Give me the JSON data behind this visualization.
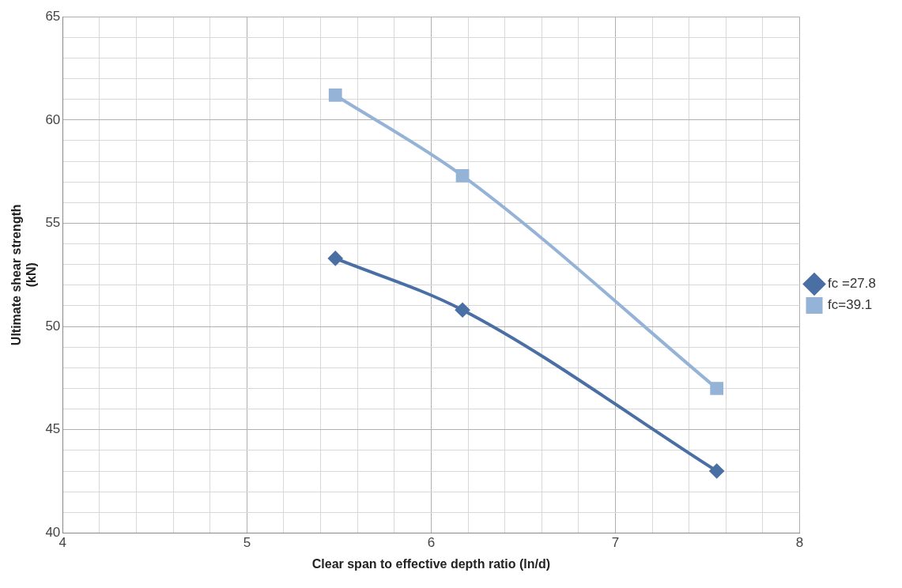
{
  "chart_data": {
    "type": "line",
    "xlabel": "Clear span to effective depth ratio (ln/d)",
    "ylabel": "Ultimate shear strength\n(kN)",
    "xlim": [
      4,
      8
    ],
    "ylim": [
      40,
      65
    ],
    "xticks": [
      4,
      {
        "value": 4.2,
        "label": null
      },
      {
        "value": 4.4,
        "label": null
      },
      {
        "value": 4.6,
        "label": null
      },
      {
        "value": 4.8,
        "label": null
      },
      5,
      {
        "value": 5.2,
        "label": null
      },
      {
        "value": 5.4,
        "label": null
      },
      {
        "value": 5.6,
        "label": null
      },
      {
        "value": 5.8,
        "label": null
      },
      6,
      {
        "value": 6.2,
        "label": null
      },
      {
        "value": 6.4,
        "label": null
      },
      {
        "value": 6.6,
        "label": null
      },
      {
        "value": 6.8,
        "label": null
      },
      7,
      {
        "value": 7.2,
        "label": null
      },
      {
        "value": 7.4,
        "label": null
      },
      {
        "value": 7.6,
        "label": null
      },
      {
        "value": 7.8,
        "label": null
      },
      8
    ],
    "yticks": [
      40,
      {
        "value": 41,
        "label": null
      },
      {
        "value": 42,
        "label": null
      },
      {
        "value": 43,
        "label": null
      },
      {
        "value": 44,
        "label": null
      },
      45,
      {
        "value": 46,
        "label": null
      },
      {
        "value": 47,
        "label": null
      },
      {
        "value": 48,
        "label": null
      },
      {
        "value": 49,
        "label": null
      },
      50,
      {
        "value": 51,
        "label": null
      },
      {
        "value": 52,
        "label": null
      },
      {
        "value": 53,
        "label": null
      },
      {
        "value": 54,
        "label": null
      },
      55,
      {
        "value": 56,
        "label": null
      },
      {
        "value": 57,
        "label": null
      },
      {
        "value": 58,
        "label": null
      },
      {
        "value": 59,
        "label": null
      },
      60,
      {
        "value": 61,
        "label": null
      },
      {
        "value": 62,
        "label": null
      },
      {
        "value": 63,
        "label": null
      },
      {
        "value": 64,
        "label": null
      },
      65
    ],
    "grid": true,
    "legend": "right",
    "series": [
      {
        "name": "fc =27.8",
        "color": "#4a6fa5",
        "marker": "diamond",
        "x": [
          5.48,
          6.17,
          7.55
        ],
        "values": [
          53.3,
          50.8,
          43.0
        ]
      },
      {
        "name": "fc=39.1",
        "color": "#95b3d7",
        "marker": "square",
        "x": [
          5.48,
          6.17,
          7.55
        ],
        "values": [
          61.2,
          57.3,
          47.0
        ]
      }
    ]
  }
}
